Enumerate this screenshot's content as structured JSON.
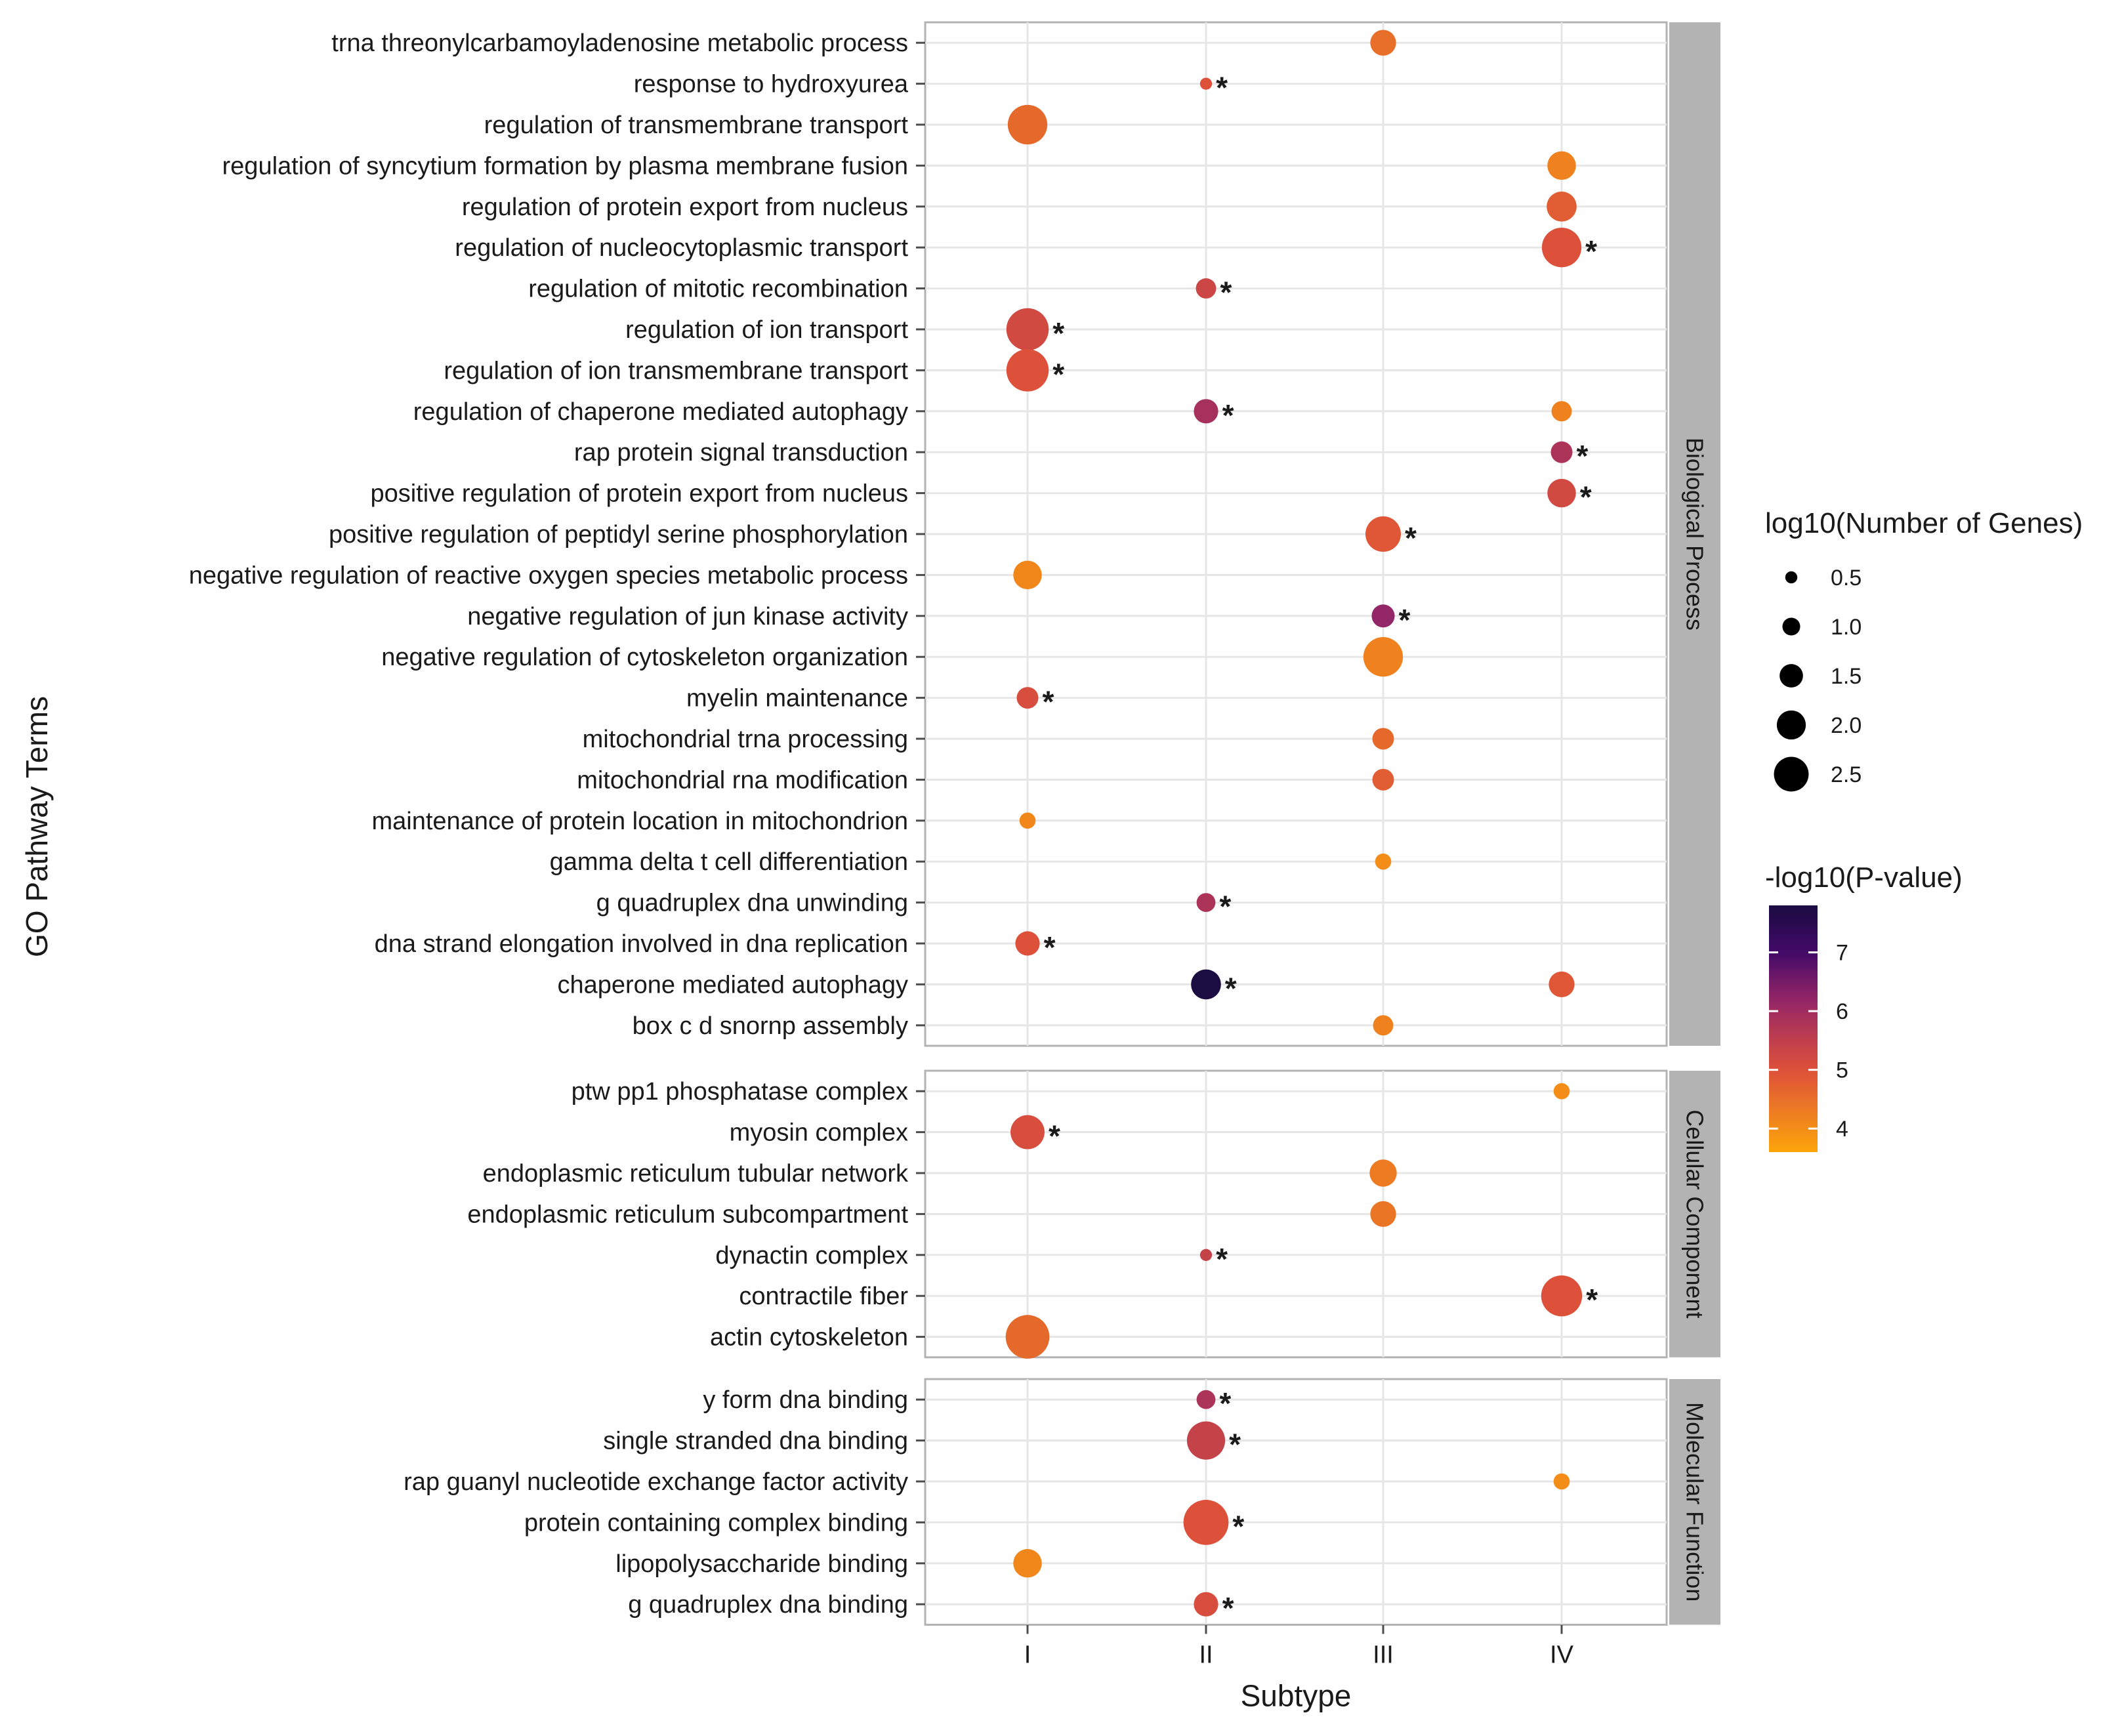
{
  "chart_data": {
    "type": "scatter",
    "subtitle_note": "dot plot of GO enrichment faceted by ontology",
    "xlabel": "Subtype",
    "ylabel": "GO Pathway Terms",
    "x_categories": [
      "I",
      "II",
      "III",
      "IV"
    ],
    "size_legend": {
      "title": "log10(Number of Genes)",
      "breaks": [
        0.5,
        1.0,
        1.5,
        2.0,
        2.5
      ],
      "break_labels": [
        "0.5",
        "1.0",
        "1.5",
        "2.0",
        "2.5"
      ]
    },
    "color_legend": {
      "title": "-log10(P-value)",
      "range": [
        3.6,
        7.8
      ],
      "breaks": [
        4,
        5,
        6,
        7
      ],
      "break_labels": [
        "4",
        "5",
        "6",
        "7"
      ],
      "colors": [
        "#fca50a",
        "#dd513a",
        "#932667",
        "#420a68",
        "#1b0c41"
      ]
    },
    "significance_marker": "*",
    "facets": [
      {
        "name": "Biological Process",
        "terms": [
          "trna threonylcarbamoyladenosine metabolic process",
          "response to hydroxyurea",
          "regulation of transmembrane transport",
          "regulation of syncytium formation by plasma membrane fusion",
          "regulation of protein export from nucleus",
          "regulation of nucleocytoplasmic transport",
          "regulation of mitotic recombination",
          "regulation of ion transport",
          "regulation of ion transmembrane transport",
          "regulation of chaperone mediated autophagy",
          "rap protein signal transduction",
          "positive regulation of protein export from nucleus",
          "positive regulation of peptidyl serine phosphorylation",
          "negative regulation of reactive oxygen species metabolic process",
          "negative regulation of jun kinase activity",
          "negative regulation of cytoskeleton organization",
          "myelin maintenance",
          "mitochondrial trna processing",
          "mitochondrial rna modification",
          "maintenance of protein location in mitochondrion",
          "gamma delta t cell differentiation",
          "g quadruplex dna unwinding",
          "dna strand elongation involved in dna replication",
          "chaperone mediated autophagy",
          "box c d snornp assembly"
        ],
        "points": [
          {
            "term": 0,
            "subtype": "III",
            "size": 1.3,
            "pval": 4.5,
            "sig": false
          },
          {
            "term": 1,
            "subtype": "II",
            "size": 0.3,
            "pval": 5.0,
            "sig": true
          },
          {
            "term": 2,
            "subtype": "I",
            "size": 2.3,
            "pval": 4.6,
            "sig": false
          },
          {
            "term": 3,
            "subtype": "IV",
            "size": 1.5,
            "pval": 4.2,
            "sig": false
          },
          {
            "term": 4,
            "subtype": "IV",
            "size": 1.6,
            "pval": 4.8,
            "sig": false
          },
          {
            "term": 5,
            "subtype": "IV",
            "size": 2.3,
            "pval": 5.0,
            "sig": true
          },
          {
            "term": 6,
            "subtype": "II",
            "size": 0.9,
            "pval": 5.3,
            "sig": true
          },
          {
            "term": 7,
            "subtype": "I",
            "size": 2.5,
            "pval": 5.2,
            "sig": true
          },
          {
            "term": 8,
            "subtype": "I",
            "size": 2.5,
            "pval": 5.0,
            "sig": true
          },
          {
            "term": 9,
            "subtype": "II",
            "size": 1.2,
            "pval": 5.9,
            "sig": true
          },
          {
            "term": 9,
            "subtype": "IV",
            "size": 0.9,
            "pval": 4.2,
            "sig": false
          },
          {
            "term": 10,
            "subtype": "IV",
            "size": 1.0,
            "pval": 5.8,
            "sig": true
          },
          {
            "term": 11,
            "subtype": "IV",
            "size": 1.5,
            "pval": 5.2,
            "sig": true
          },
          {
            "term": 12,
            "subtype": "III",
            "size": 2.0,
            "pval": 4.9,
            "sig": true
          },
          {
            "term": 13,
            "subtype": "I",
            "size": 1.5,
            "pval": 4.1,
            "sig": false
          },
          {
            "term": 14,
            "subtype": "III",
            "size": 1.1,
            "pval": 6.2,
            "sig": true
          },
          {
            "term": 15,
            "subtype": "III",
            "size": 2.3,
            "pval": 4.2,
            "sig": false
          },
          {
            "term": 16,
            "subtype": "I",
            "size": 1.0,
            "pval": 5.1,
            "sig": true
          },
          {
            "term": 17,
            "subtype": "III",
            "size": 1.0,
            "pval": 4.6,
            "sig": false
          },
          {
            "term": 18,
            "subtype": "III",
            "size": 1.0,
            "pval": 4.8,
            "sig": false
          },
          {
            "term": 19,
            "subtype": "I",
            "size": 0.6,
            "pval": 4.1,
            "sig": false
          },
          {
            "term": 20,
            "subtype": "III",
            "size": 0.6,
            "pval": 4.0,
            "sig": false
          },
          {
            "term": 21,
            "subtype": "II",
            "size": 0.8,
            "pval": 5.8,
            "sig": true
          },
          {
            "term": 22,
            "subtype": "I",
            "size": 1.2,
            "pval": 5.0,
            "sig": true
          },
          {
            "term": 23,
            "subtype": "II",
            "size": 1.6,
            "pval": 7.8,
            "sig": true
          },
          {
            "term": 23,
            "subtype": "IV",
            "size": 1.3,
            "pval": 4.9,
            "sig": false
          },
          {
            "term": 24,
            "subtype": "III",
            "size": 0.9,
            "pval": 4.2,
            "sig": false
          }
        ]
      },
      {
        "name": "Cellular Component",
        "terms": [
          "ptw pp1 phosphatase complex",
          "myosin complex",
          "endoplasmic reticulum tubular network",
          "endoplasmic reticulum subcompartment",
          "dynactin complex",
          "contractile fiber",
          "actin cytoskeleton"
        ],
        "points": [
          {
            "term": 0,
            "subtype": "IV",
            "size": 0.6,
            "pval": 4.0,
            "sig": false
          },
          {
            "term": 1,
            "subtype": "I",
            "size": 1.9,
            "pval": 5.1,
            "sig": true
          },
          {
            "term": 2,
            "subtype": "III",
            "size": 1.4,
            "pval": 4.3,
            "sig": false
          },
          {
            "term": 3,
            "subtype": "III",
            "size": 1.3,
            "pval": 4.4,
            "sig": false
          },
          {
            "term": 4,
            "subtype": "II",
            "size": 0.3,
            "pval": 5.4,
            "sig": true
          },
          {
            "term": 5,
            "subtype": "IV",
            "size": 2.4,
            "pval": 5.0,
            "sig": true
          },
          {
            "term": 6,
            "subtype": "I",
            "size": 2.6,
            "pval": 4.6,
            "sig": false
          }
        ]
      },
      {
        "name": "Molecular Function",
        "terms": [
          "y form dna binding",
          "single stranded dna binding",
          "rap guanyl nucleotide exchange factor activity",
          "protein containing complex binding",
          "lipopolysaccharide binding",
          "g quadruplex dna binding"
        ],
        "points": [
          {
            "term": 0,
            "subtype": "II",
            "size": 0.8,
            "pval": 5.8,
            "sig": true
          },
          {
            "term": 1,
            "subtype": "II",
            "size": 2.2,
            "pval": 5.4,
            "sig": true
          },
          {
            "term": 2,
            "subtype": "IV",
            "size": 0.6,
            "pval": 4.0,
            "sig": false
          },
          {
            "term": 3,
            "subtype": "II",
            "size": 2.7,
            "pval": 5.0,
            "sig": true
          },
          {
            "term": 4,
            "subtype": "I",
            "size": 1.5,
            "pval": 4.1,
            "sig": false
          },
          {
            "term": 5,
            "subtype": "II",
            "size": 1.2,
            "pval": 5.1,
            "sig": true
          }
        ]
      }
    ]
  }
}
